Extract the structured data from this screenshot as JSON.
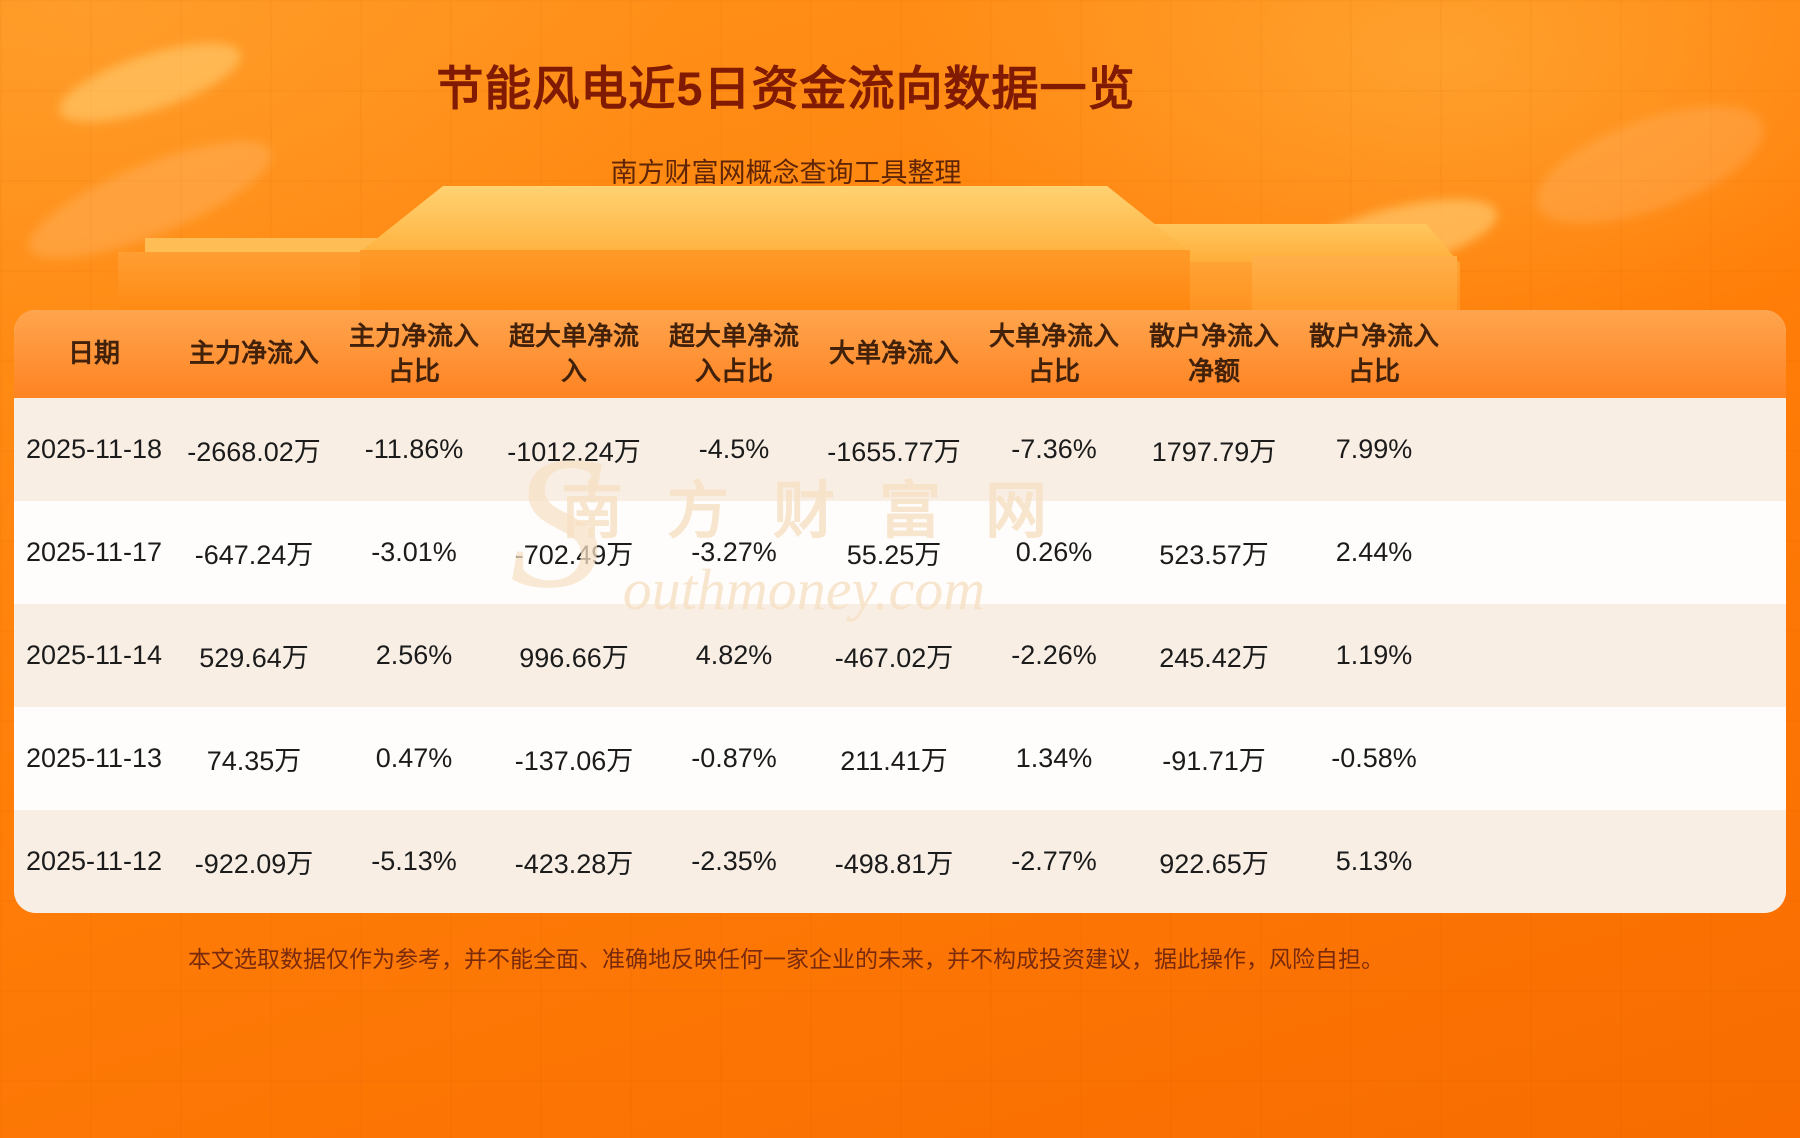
{
  "page": {
    "title": "节能风电近5日资金流向数据一览",
    "subtitle": "南方财富网概念查询工具整理",
    "disclaimer": "本文选取数据仅作为参考，并不能全面、准确地反映任何一家企业的未来，并不构成投资建议，据此操作，风险自担。",
    "watermark_cn": "南方财富网",
    "watermark_s": "S",
    "watermark_en": "outhmoney.com"
  },
  "chart_data": {
    "type": "table",
    "title": "节能风电近5日资金流向数据一览",
    "columns": [
      "日期",
      "主力净流入",
      "主力净流入占比",
      "超大单净流入",
      "超大单净流入占比",
      "大单净流入",
      "大单净流入占比",
      "散户净流入净额",
      "散户净流入占比"
    ],
    "rows": [
      [
        "2025-11-18",
        "-2668.02万",
        "-11.86%",
        "-1012.24万",
        "-4.5%",
        "-1655.77万",
        "-7.36%",
        "1797.79万",
        "7.99%"
      ],
      [
        "2025-11-17",
        "-647.24万",
        "-3.01%",
        "-702.49万",
        "-3.27%",
        "55.25万",
        "0.26%",
        "523.57万",
        "2.44%"
      ],
      [
        "2025-11-14",
        "529.64万",
        "2.56%",
        "996.66万",
        "4.82%",
        "-467.02万",
        "-2.26%",
        "245.42万",
        "1.19%"
      ],
      [
        "2025-11-13",
        "74.35万",
        "0.47%",
        "-137.06万",
        "-0.87%",
        "211.41万",
        "1.34%",
        "-91.71万",
        "-0.58%"
      ],
      [
        "2025-11-12",
        "-922.09万",
        "-5.13%",
        "-423.28万",
        "-2.35%",
        "-498.81万",
        "-2.77%",
        "922.65万",
        "5.13%"
      ]
    ]
  },
  "colors": {
    "accent": "#ff7e08",
    "title_text": "#801a02",
    "header_gradient_top": "#ffa54e",
    "header_gradient_bottom": "#ff8322",
    "row_alt": "#f8eee4",
    "disclaimer_text": "#7a2a0c"
  }
}
